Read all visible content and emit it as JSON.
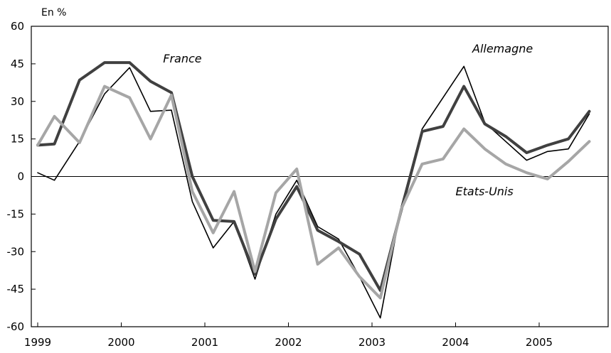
{
  "chart_data": {
    "type": "line",
    "unit_label": "En %",
    "xlabel": "",
    "ylabel": "",
    "xlim": [
      1999,
      2005.6
    ],
    "ylim": [
      -60,
      60
    ],
    "x_ticks": [
      1999,
      2000,
      2001,
      2002,
      2003,
      2004,
      2005
    ],
    "x_tick_labels": [
      "1999",
      "2000",
      "2001",
      "2002",
      "2003",
      "2004",
      "2005"
    ],
    "y_ticks": [
      60,
      45,
      30,
      15,
      0,
      -15,
      -30,
      -45,
      -60
    ],
    "y_tick_labels": [
      "60",
      "45",
      "30",
      "15",
      "0",
      "-15",
      "-30",
      "-45",
      "-60"
    ],
    "grid": false,
    "zero_line": true,
    "series": [
      {
        "name": "Allemagne",
        "color": "#000000",
        "width": 1.6,
        "x": [
          1999.0,
          1999.2,
          1999.5,
          1999.8,
          2000.1,
          2000.35,
          2000.6,
          2000.85,
          2001.1,
          2001.35,
          2001.6,
          2001.85,
          2002.1,
          2002.35,
          2002.6,
          2002.85,
          2003.1,
          2003.35,
          2003.6,
          2004.1,
          2004.35,
          2004.6,
          2004.85,
          2005.1,
          2005.35,
          2005.6
        ],
        "values": [
          1.5,
          -1.5,
          14,
          33,
          43.5,
          26,
          26.5,
          -10,
          -28.5,
          -18,
          -41,
          -15,
          -1.5,
          -20,
          -25,
          -40,
          -56.5,
          -12,
          19,
          44,
          21.5,
          14,
          6.5,
          10,
          11,
          25
        ]
      },
      {
        "name": "France",
        "color": "#404040",
        "width": 4,
        "x": [
          1999.0,
          1999.2,
          1999.5,
          1999.8,
          2000.1,
          2000.35,
          2000.6,
          2000.85,
          2001.1,
          2001.35,
          2001.6,
          2001.85,
          2002.1,
          2002.35,
          2002.6,
          2002.85,
          2003.1,
          2003.35,
          2003.6,
          2003.85,
          2004.1,
          2004.35,
          2004.6,
          2004.85,
          2005.1,
          2005.35,
          2005.6
        ],
        "values": [
          12.5,
          13,
          38.5,
          45.5,
          45.5,
          38,
          33.5,
          0,
          -17.5,
          -18,
          -39,
          -17,
          -4,
          -21.5,
          -26,
          -31,
          -45.5,
          -13.5,
          18,
          20,
          36,
          21,
          16,
          9.5,
          12.5,
          15,
          26
        ]
      },
      {
        "name": "Etats-Unis",
        "color": "#a6a6a6",
        "width": 4,
        "x": [
          1999.0,
          1999.2,
          1999.5,
          1999.8,
          2000.1,
          2000.35,
          2000.6,
          2000.85,
          2001.1,
          2001.35,
          2001.6,
          2001.85,
          2002.1,
          2002.35,
          2002.6,
          2002.85,
          2003.1,
          2003.35,
          2003.6,
          2003.85,
          2004.1,
          2004.35,
          2004.6,
          2004.85,
          2005.1,
          2005.35,
          2005.6
        ],
        "values": [
          12.5,
          24,
          13.5,
          36,
          31.5,
          15,
          32.5,
          -6,
          -22.5,
          -6,
          -38,
          -6.5,
          3,
          -35,
          -28.5,
          -40,
          -48.5,
          -13,
          5,
          7,
          19,
          11,
          5,
          1.5,
          -1,
          6,
          14
        ]
      }
    ],
    "annotations": [
      {
        "text": "France",
        "x": 2000.5,
        "y": 45.5
      },
      {
        "text": "Allemagne",
        "x": 2004.2,
        "y": 49.5
      },
      {
        "text": "Etats-Unis",
        "x": 2004.0,
        "y": -7.5
      }
    ]
  }
}
